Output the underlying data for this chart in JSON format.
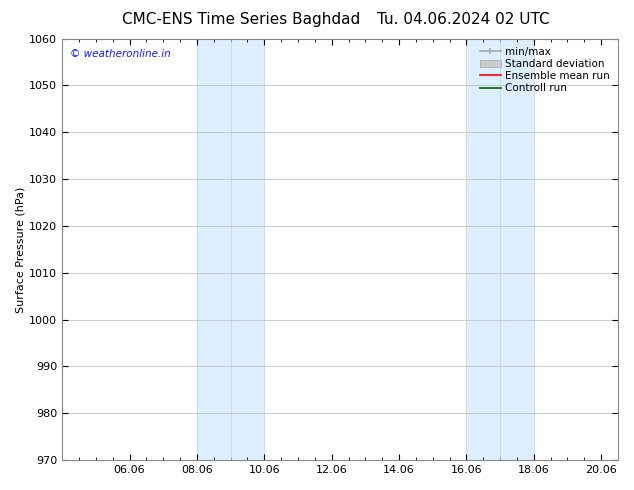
{
  "title_left": "CMC-ENS Time Series Baghdad",
  "title_right": "Tu. 04.06.2024 02 UTC",
  "ylabel": "Surface Pressure (hPa)",
  "ylim": [
    970,
    1060
  ],
  "yticks": [
    970,
    980,
    990,
    1000,
    1010,
    1020,
    1030,
    1040,
    1050,
    1060
  ],
  "xtick_labels": [
    "06.06",
    "08.06",
    "10.06",
    "12.06",
    "14.06",
    "16.06",
    "18.06",
    "20.06"
  ],
  "xtick_positions": [
    2,
    4,
    6,
    8,
    10,
    12,
    14,
    16
  ],
  "xlim": [
    0,
    16.5
  ],
  "shaded_bands": [
    {
      "x_start": 4,
      "x_end": 6
    },
    {
      "x_start": 12,
      "x_end": 14
    }
  ],
  "shaded_color": "#ddeeff",
  "shaded_edgecolor": "#b8d4ea",
  "watermark": "© weatheronline.in",
  "watermark_color": "#1a1aff",
  "background_color": "#ffffff",
  "grid_color": "#bbbbbb",
  "title_fontsize": 11,
  "axis_fontsize": 8,
  "tick_fontsize": 8,
  "legend_fontsize": 7.5
}
